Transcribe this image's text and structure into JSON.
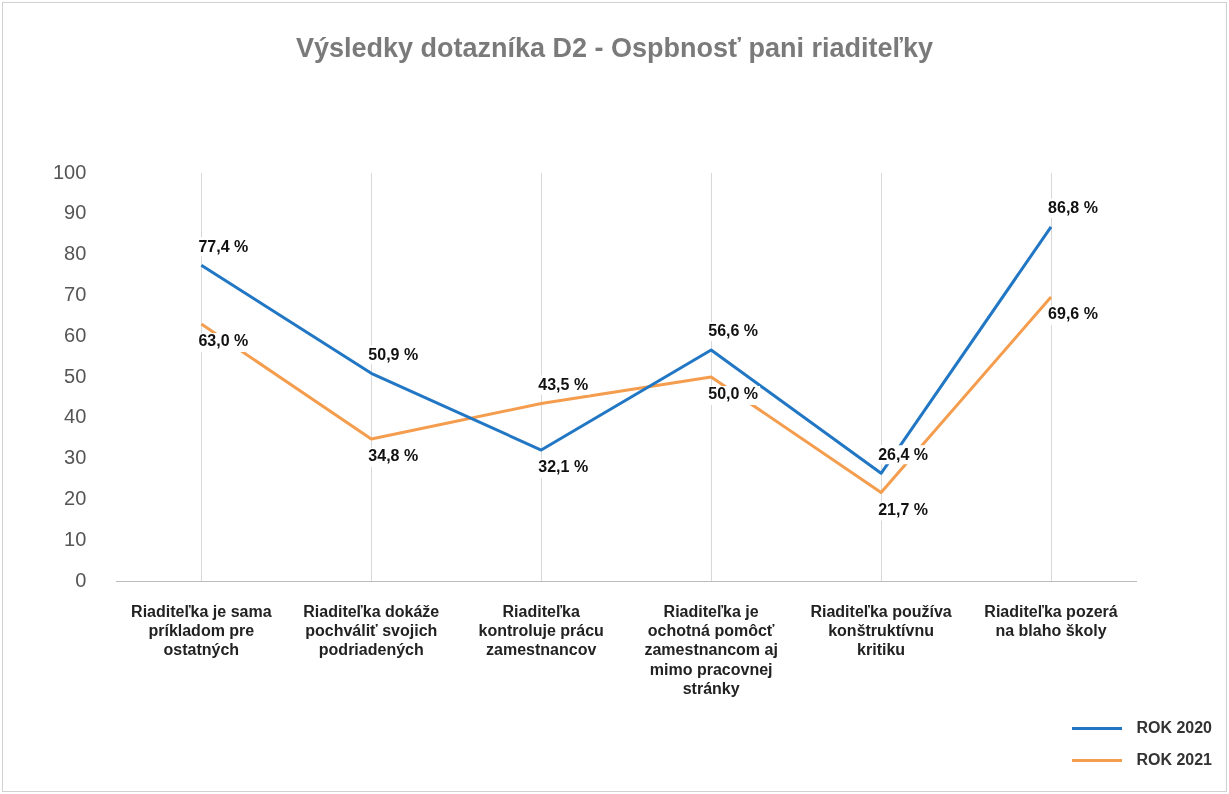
{
  "chart_data": {
    "type": "line",
    "title": "Výsledky  dotazníka D2 - Ospbnosť pani riaditeľky",
    "categories": [
      "Riaditeľka je sama príkladom pre ostatných",
      "Riaditeľka dokáže pochváliť svojich podriadených",
      "Riaditeľka kontroluje prácu zamestnancov",
      "Riaditeľka je ochotná pomôcť zamestnancom aj mimo pracovnej stránky",
      "Riaditeľka používa konštruktívnu kritiku",
      "Riaditeľka pozerá na blaho školy"
    ],
    "series": [
      {
        "name": "ROK 2020",
        "color": "#2277c4",
        "values": [
          77.4,
          50.9,
          32.1,
          56.6,
          26.4,
          86.8
        ],
        "value_labels": [
          "77,4 %",
          "50,9 %",
          "32,1 %",
          "56,6 %",
          "26,4 %",
          "86,8 %"
        ]
      },
      {
        "name": "ROK 2021",
        "color": "#f59d4e",
        "values": [
          63.0,
          34.8,
          43.5,
          50.0,
          21.7,
          69.6
        ],
        "value_labels": [
          "63,0 %",
          "34,8 %",
          "43,5 %",
          "50,0 %",
          "21,7 %",
          "69,6 %"
        ]
      }
    ],
    "ylim": [
      0,
      100
    ],
    "yticks": [
      0,
      10,
      20,
      30,
      40,
      50,
      60,
      70,
      80,
      90,
      100
    ],
    "grid": "x",
    "legend": "bottom right",
    "marker": "none",
    "line_style": "solid"
  }
}
